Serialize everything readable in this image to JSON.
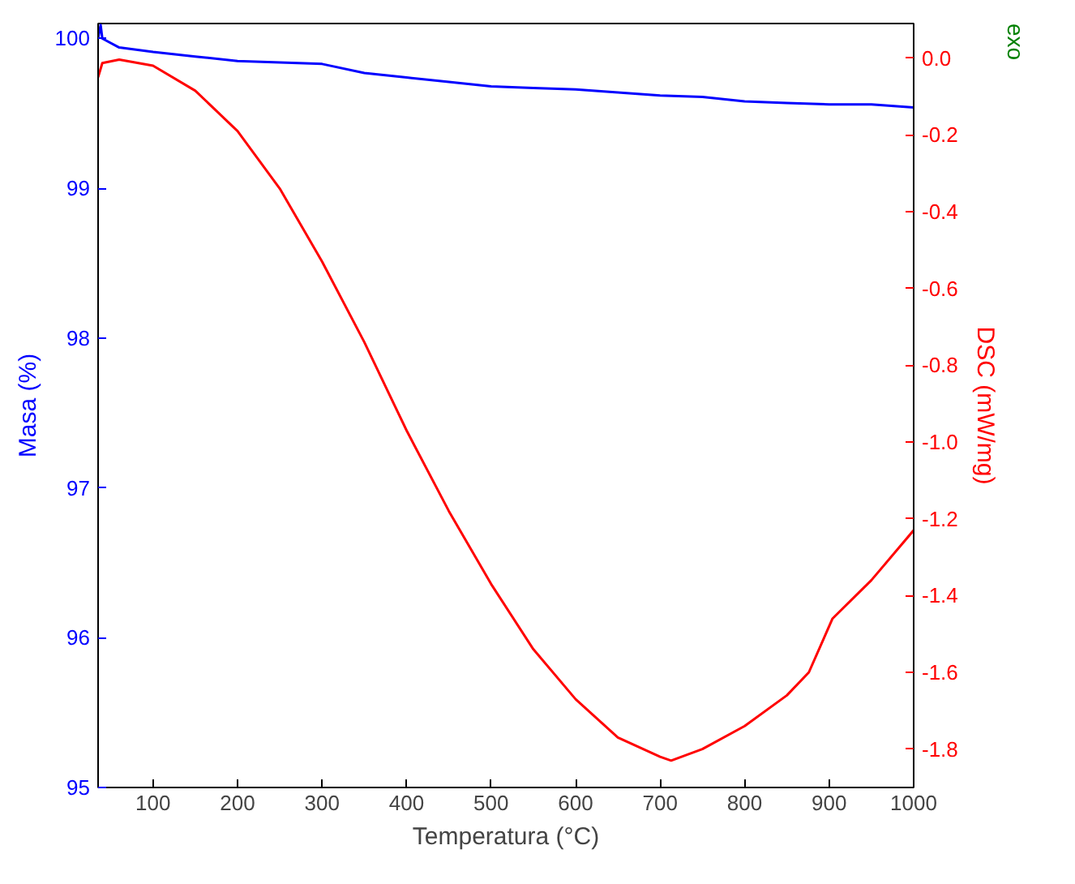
{
  "chart_data": {
    "type": "line",
    "xlabel": "Temperatura (°C)",
    "ylabel": "Masa (%)",
    "y2label": "DSC (mW/mg)",
    "xlim": [
      35,
      1000
    ],
    "xticks": [
      100,
      200,
      300,
      400,
      500,
      600,
      700,
      800,
      900,
      1000
    ],
    "ylim": [
      95,
      100.1
    ],
    "yticks": [
      95,
      96,
      97,
      98,
      99,
      100
    ],
    "y2lim": [
      -1.9,
      0.09
    ],
    "y2ticks": [
      {
        "value": 0,
        "label": "0.0"
      },
      -0.2,
      -0.4,
      -0.6,
      -0.8,
      {
        "value": -1,
        "label": "-1.0"
      },
      -1.2,
      -1.4,
      -1.6,
      -1.8
    ],
    "grid": false,
    "annotations": [
      "exo"
    ],
    "series": [
      {
        "color": "#0000ff",
        "x": [
          35,
          38,
          40,
          60,
          100,
          150,
          200,
          250,
          300,
          350,
          400,
          450,
          500,
          550,
          600,
          650,
          700,
          750,
          800,
          850,
          900,
          950,
          1000
        ],
        "values": [
          100.0,
          100.09,
          100.0,
          99.94,
          99.91,
          99.88,
          99.85,
          99.84,
          99.83,
          99.77,
          99.74,
          99.71,
          99.68,
          99.67,
          99.66,
          99.64,
          99.62,
          99.61,
          99.58,
          99.57,
          99.56,
          99.56,
          99.54
        ]
      },
      {
        "color": "#ff0000",
        "axis": "y2",
        "x": [
          35,
          40,
          60,
          100,
          150,
          200,
          250,
          300,
          350,
          400,
          450,
          500,
          550,
          600,
          650,
          700,
          713,
          750,
          800,
          850,
          876,
          904,
          950,
          1000
        ],
        "values": [
          -0.05,
          -0.013,
          -0.004,
          -0.02,
          -0.085,
          -0.19,
          -0.34,
          -0.53,
          -0.74,
          -0.97,
          -1.18,
          -1.37,
          -1.54,
          -1.67,
          -1.77,
          -1.82,
          -1.83,
          -1.8,
          -1.74,
          -1.66,
          -1.6,
          -1.46,
          -1.36,
          -1.23
        ]
      }
    ]
  }
}
